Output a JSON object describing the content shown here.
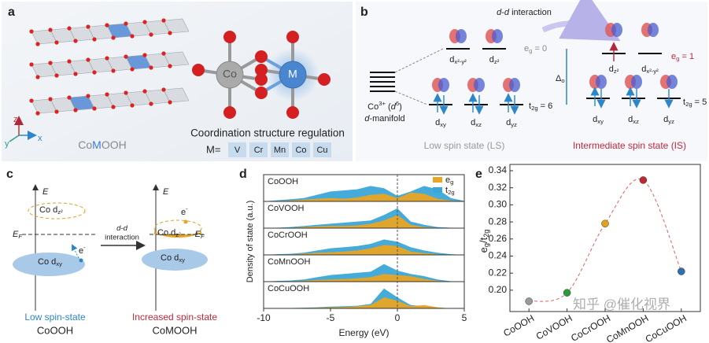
{
  "panels": {
    "a": {
      "label": "a",
      "compound": [
        "Co",
        "M",
        "OOH"
      ],
      "atom_co": "Co",
      "atom_m": "M",
      "caption": "Coordination structure regulation",
      "m_eq": "M=",
      "metals": [
        "V",
        "Cr",
        "Mn",
        "Co",
        "Cu"
      ],
      "axis_z": "z",
      "axis_y": "y",
      "axis_x": "x"
    },
    "b": {
      "label": "b",
      "dd": [
        {
          "it": "d"
        },
        "-",
        {
          "it": "d"
        },
        " interaction"
      ],
      "co_ion": [
        "Co",
        {
          "sup": "3+"
        },
        " (",
        {
          "it": "d"
        },
        {
          "sup": "6"
        },
        ")"
      ],
      "manifold": [
        {
          "it": "d"
        },
        "-manifold"
      ],
      "delta": [
        "Δ",
        {
          "sub": "o"
        }
      ],
      "ls": {
        "eg_orbitals": [
          [
            "d",
            {
              "sub": "x²-y²"
            }
          ],
          [
            "d",
            {
              "sub": "z²"
            }
          ]
        ],
        "eg": [
          "e",
          {
            "sub": "g"
          },
          " = 0"
        ],
        "t2g_orbitals": [
          [
            "d",
            {
              "sub": "xy"
            }
          ],
          [
            "d",
            {
              "sub": "xz"
            }
          ],
          [
            "d",
            {
              "sub": "yz"
            }
          ]
        ],
        "t2g": [
          "t",
          {
            "sub": "2g"
          },
          " = 6"
        ],
        "title": "Low spin state (LS)"
      },
      "is": {
        "eg_orbitals": [
          [
            "d",
            {
              "sub": "z²"
            }
          ],
          [
            "d",
            {
              "sub": "x²-y²"
            }
          ]
        ],
        "eg": [
          "e",
          {
            "sub": "g"
          },
          " = 1"
        ],
        "t2g_orbitals": [
          [
            "d",
            {
              "sub": "xy"
            }
          ],
          [
            "d",
            {
              "sub": "xz"
            }
          ],
          [
            "d",
            {
              "sub": "yz"
            }
          ]
        ],
        "t2g": [
          "t",
          {
            "sub": "2g"
          },
          " = 5"
        ],
        "title": "Intermediate spin state (IS)"
      }
    },
    "c": {
      "label": "c",
      "e_left": "E",
      "co_dz2_left": [
        "Co d",
        {
          "sub": "z²"
        }
      ],
      "ef_left": [
        "E",
        {
          "sub": "F"
        }
      ],
      "electron_left": [
        "e",
        {
          "sup": "-"
        }
      ],
      "co_dxy_left": [
        "Co d",
        {
          "sub": "xy"
        }
      ],
      "arrow_top": [
        {
          "it": "d-d"
        }
      ],
      "arrow_bottom": "interaction",
      "e_right": "E",
      "electron_right": [
        "e",
        {
          "sup": "-"
        }
      ],
      "co_dz2_right": [
        "Co d",
        {
          "sub": "z²"
        }
      ],
      "ef_right": [
        "-E",
        {
          "sub": "F"
        }
      ],
      "co_dxy_right": [
        "Co d",
        {
          "sub": "xy"
        }
      ],
      "state_left": "Low spin-state",
      "name_left": "CoOOH",
      "state_right": "Increased spin-state",
      "name_right": "CoMOOH"
    }
  },
  "chart_data": [
    {
      "type": "area",
      "panel_label": "d",
      "x_label": "Energy (eV)",
      "y_label": "Density of state (a.u.)",
      "xlim": [
        -10,
        5
      ],
      "xticks": [
        -10,
        -5,
        0,
        5
      ],
      "ylim": [
        0,
        1
      ],
      "x": [
        -10,
        -9,
        -8,
        -7,
        -6,
        -5,
        -4,
        -3,
        -2,
        -1,
        0,
        1,
        2,
        3,
        4,
        5
      ],
      "series": [
        {
          "name": [
            "e",
            {
              "sub": "g"
            }
          ],
          "color": "#e9a424"
        },
        {
          "name": [
            "t",
            {
              "sub": "2g"
            }
          ],
          "color": "#3aa7d9"
        }
      ],
      "subplots": [
        {
          "name": "CoOOH",
          "values": [
            [
              0,
              0.02,
              0.04,
              0.08,
              0.12,
              0.15,
              0.12,
              0.18,
              0.3,
              0.35,
              0.15,
              0.4,
              0.35,
              0.12,
              0.04,
              0
            ],
            [
              0,
              0.05,
              0.1,
              0.15,
              0.3,
              0.45,
              0.5,
              0.55,
              0.7,
              0.6,
              0.25,
              0.45,
              0.7,
              0.55,
              0.15,
              0.02
            ]
          ]
        },
        {
          "name": "CoVOOH",
          "values": [
            [
              0,
              0,
              0.02,
              0.05,
              0.08,
              0.1,
              0.1,
              0.12,
              0.2,
              0.35,
              0.6,
              0.15,
              0.05,
              0.02,
              0,
              0
            ],
            [
              0,
              0.02,
              0.05,
              0.1,
              0.15,
              0.2,
              0.25,
              0.3,
              0.35,
              0.6,
              0.9,
              0.3,
              0.15,
              0.05,
              0.02,
              0
            ]
          ]
        },
        {
          "name": "CoCrOOH",
          "values": [
            [
              0,
              0,
              0.02,
              0.05,
              0.1,
              0.12,
              0.15,
              0.2,
              0.3,
              0.45,
              0.4,
              0.15,
              0.08,
              0.03,
              0,
              0
            ],
            [
              0,
              0.03,
              0.05,
              0.1,
              0.2,
              0.3,
              0.35,
              0.4,
              0.5,
              0.7,
              0.6,
              0.35,
              0.2,
              0.1,
              0.03,
              0
            ]
          ]
        },
        {
          "name": "CoMnOOH",
          "values": [
            [
              0,
              0,
              0.02,
              0.04,
              0.08,
              0.1,
              0.12,
              0.15,
              0.2,
              0.35,
              0.3,
              0.25,
              0.12,
              0.04,
              0,
              0
            ],
            [
              0,
              0.03,
              0.05,
              0.1,
              0.2,
              0.3,
              0.35,
              0.4,
              0.45,
              0.8,
              0.5,
              0.35,
              0.25,
              0.1,
              0.02,
              0
            ]
          ]
        },
        {
          "name": "CoCuOOH",
          "values": [
            [
              0,
              0,
              0.01,
              0.02,
              0.03,
              0.05,
              0.06,
              0.1,
              0.15,
              0.5,
              0.35,
              0.1,
              0.15,
              0.05,
              0,
              0
            ],
            [
              0,
              0,
              0.02,
              0.03,
              0.05,
              0.08,
              0.1,
              0.12,
              0.2,
              0.9,
              0.5,
              0.15,
              0.1,
              0.03,
              0,
              0
            ]
          ]
        }
      ]
    },
    {
      "type": "scatter",
      "panel_label": "e",
      "y_label": [
        "e",
        {
          "sub": "g"
        },
        "/t",
        {
          "sub": "2g"
        }
      ],
      "categories": [
        "CoOOH",
        "CoVOOH",
        "CoCrOOH",
        "CoMnOOH",
        "CoCuOOH"
      ],
      "values": [
        0.187,
        0.197,
        0.278,
        0.329,
        0.222
      ],
      "colors": [
        "#9a9a9a",
        "#2e9a3c",
        "#e3a21a",
        "#c0282d",
        "#2f6fb0"
      ],
      "ylim": [
        0.175,
        0.34
      ],
      "yticks": [
        {
          "value": 0.2,
          "label": "0.20"
        },
        0.22,
        0.24,
        0.26,
        0.28,
        {
          "value": 0.3,
          "label": "0.30"
        },
        0.32,
        0.34
      ]
    }
  ],
  "watermark": "知乎 @催化视界"
}
